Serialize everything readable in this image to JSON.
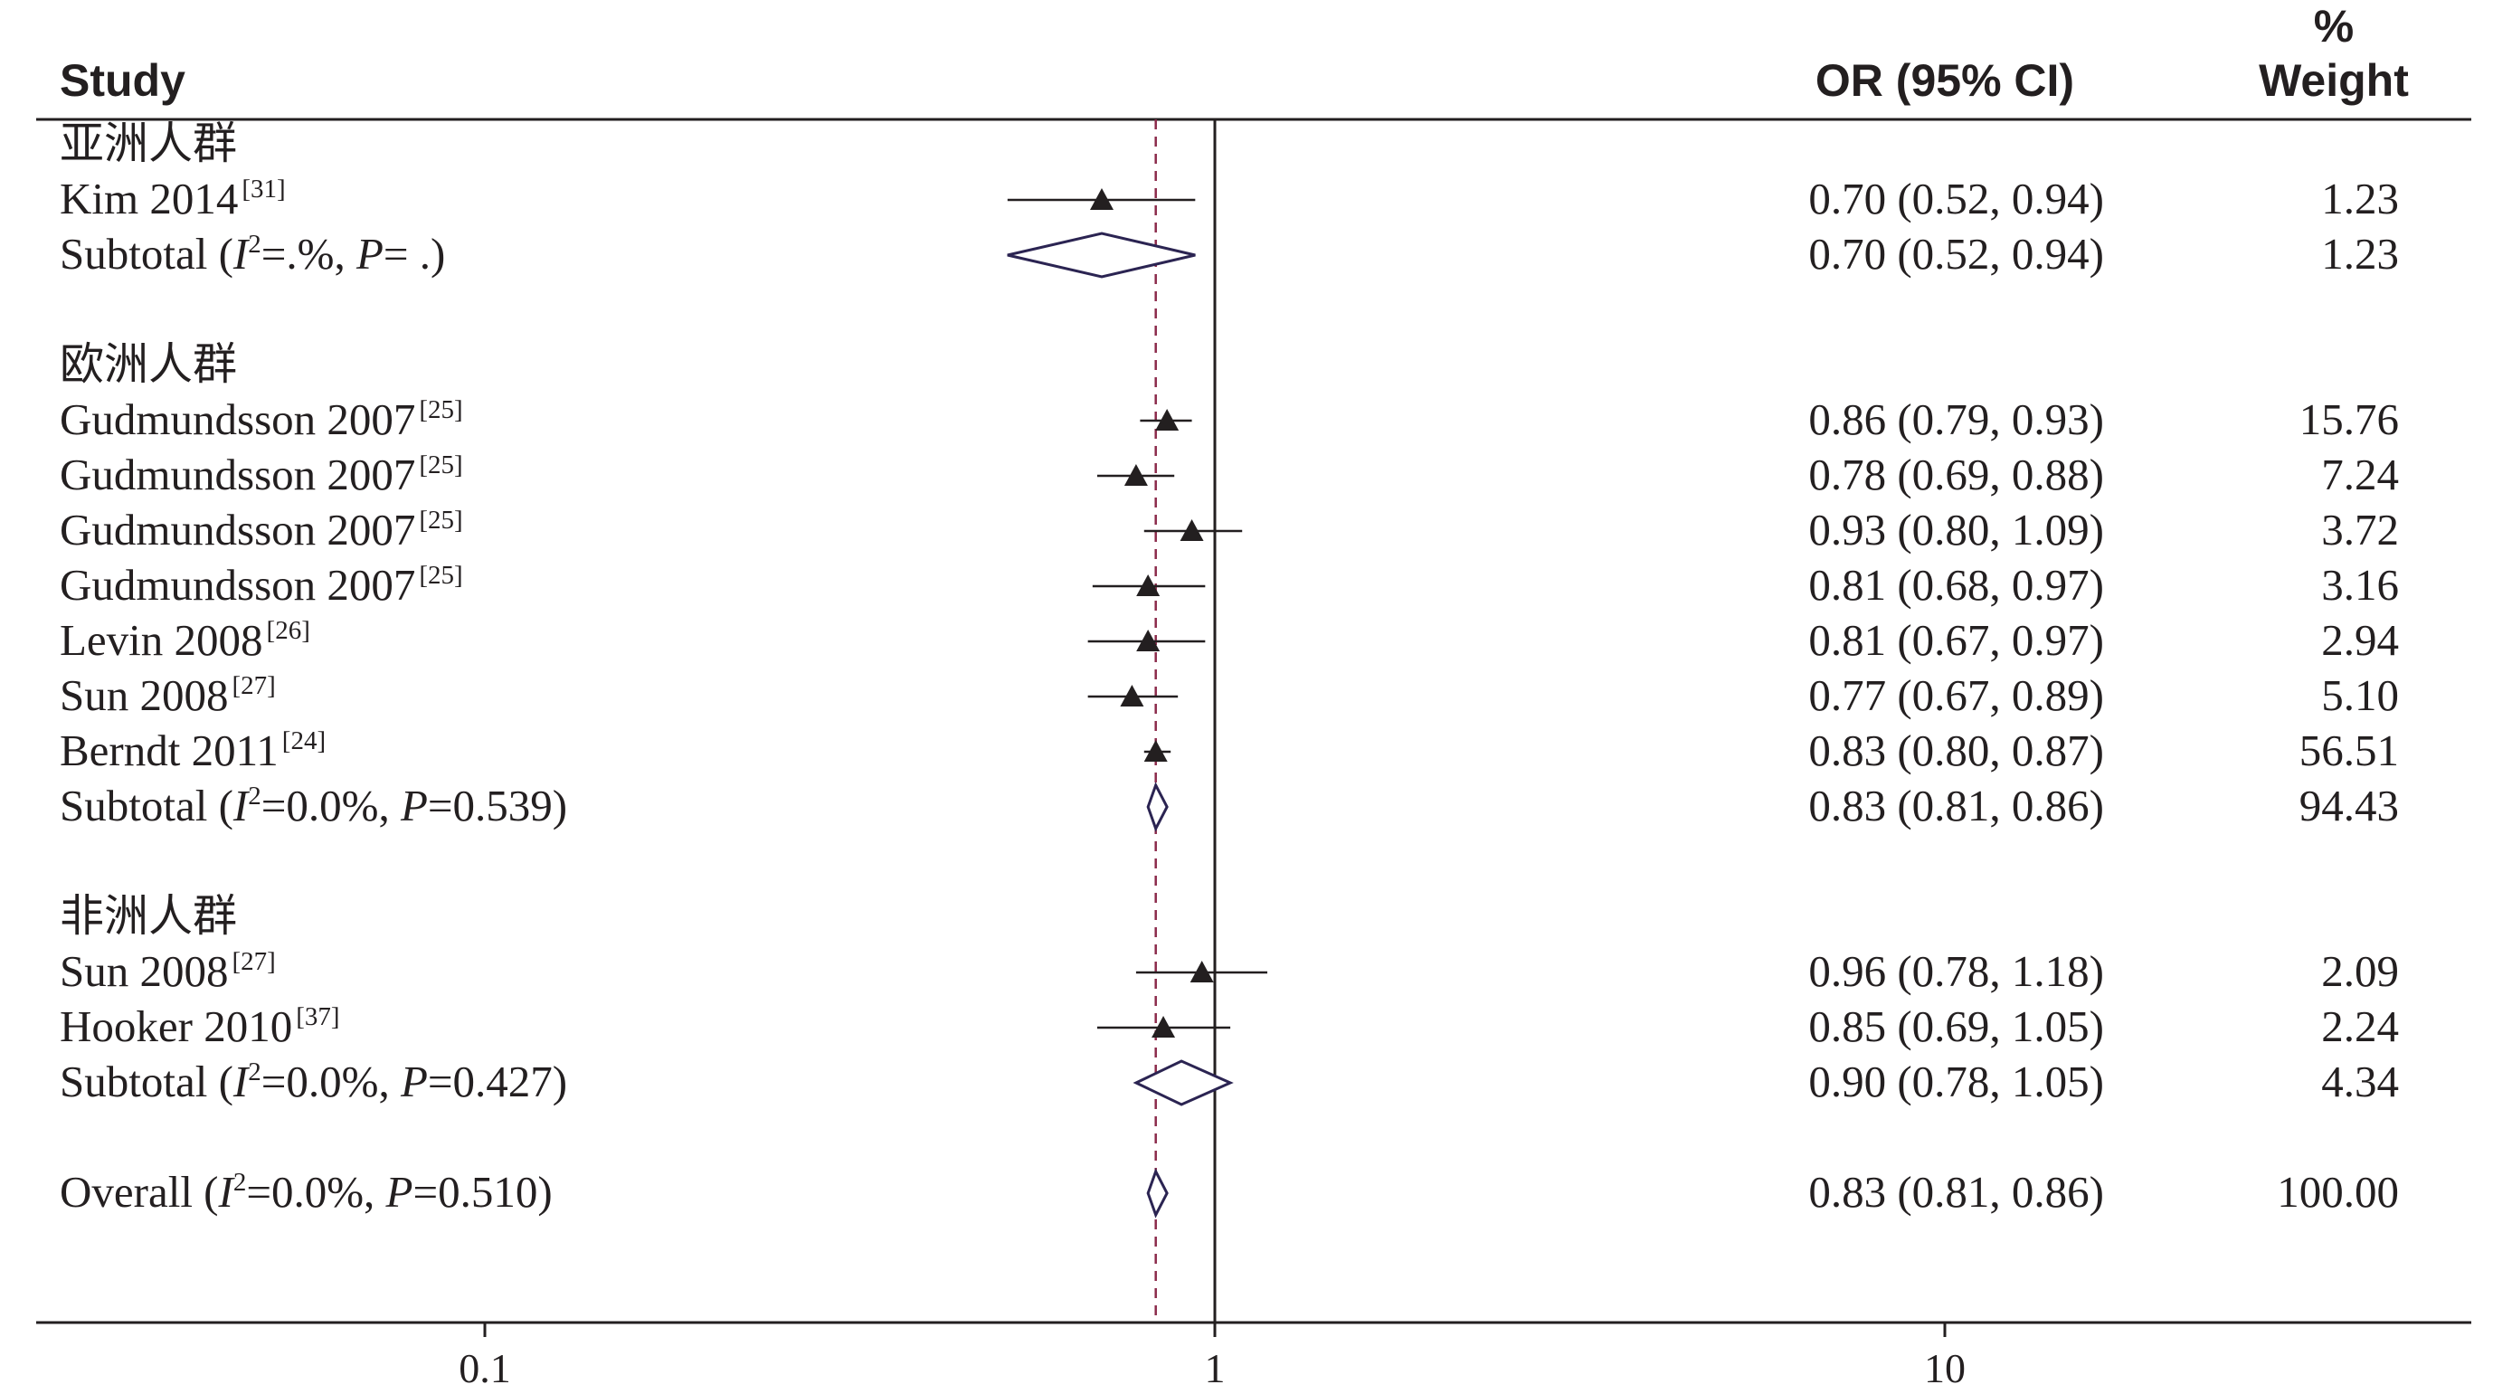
{
  "header": {
    "study": "Study",
    "or_ci": "OR (95% CI)",
    "weight_line1": "%",
    "weight_line2": "Weight"
  },
  "chart_data": {
    "type": "forest",
    "x_scale": "log",
    "xlim": [
      0.03,
      30
    ],
    "xticks": [
      0.1,
      1,
      10
    ],
    "xtick_labels": [
      "0.1",
      "1",
      "10"
    ],
    "null_line": 1,
    "overall_line": 0.83,
    "colors": {
      "marker": "#231f20",
      "diamond": "#2b2452",
      "overall_line": "#8b2a4a",
      "axis": "#231f20"
    },
    "rows": [
      {
        "kind": "group",
        "label": "亚洲人群"
      },
      {
        "kind": "study",
        "label": "Kim 2014",
        "ref": "[31]",
        "or": 0.7,
        "lo": 0.52,
        "hi": 0.94,
        "ci_text": "0.70 (0.52, 0.94)",
        "weight": "1.23"
      },
      {
        "kind": "subtotal",
        "label": "Subtotal",
        "i2": "=.%",
        "p": "= .",
        "or": 0.7,
        "lo": 0.52,
        "hi": 0.94,
        "ci_text": "0.70 (0.52, 0.94)",
        "weight": "1.23"
      },
      {
        "kind": "blank"
      },
      {
        "kind": "group",
        "label": "欧洲人群"
      },
      {
        "kind": "study",
        "label": "Gudmundsson 2007",
        "ref": "[25]",
        "or": 0.86,
        "lo": 0.79,
        "hi": 0.93,
        "ci_text": "0.86 (0.79, 0.93)",
        "weight": "15.76"
      },
      {
        "kind": "study",
        "label": "Gudmundsson 2007",
        "ref": "[25]",
        "or": 0.78,
        "lo": 0.69,
        "hi": 0.88,
        "ci_text": "0.78 (0.69, 0.88)",
        "weight": "7.24"
      },
      {
        "kind": "study",
        "label": "Gudmundsson 2007",
        "ref": "[25]",
        "or": 0.93,
        "lo": 0.8,
        "hi": 1.09,
        "ci_text": "0.93 (0.80, 1.09)",
        "weight": "3.72"
      },
      {
        "kind": "study",
        "label": "Gudmundsson 2007",
        "ref": "[25]",
        "or": 0.81,
        "lo": 0.68,
        "hi": 0.97,
        "ci_text": "0.81 (0.68, 0.97)",
        "weight": "3.16"
      },
      {
        "kind": "study",
        "label": "Levin 2008",
        "ref": "[26]",
        "or": 0.81,
        "lo": 0.67,
        "hi": 0.97,
        "ci_text": "0.81 (0.67, 0.97)",
        "weight": "2.94"
      },
      {
        "kind": "study",
        "label": "Sun 2008",
        "ref": "[27]",
        "or": 0.77,
        "lo": 0.67,
        "hi": 0.89,
        "ci_text": "0.77 (0.67, 0.89)",
        "weight": "5.10"
      },
      {
        "kind": "study",
        "label": "Berndt 2011",
        "ref": "[24]",
        "or": 0.83,
        "lo": 0.8,
        "hi": 0.87,
        "ci_text": "0.83 (0.80, 0.87)",
        "weight": "56.51"
      },
      {
        "kind": "subtotal",
        "label": "Subtotal",
        "i2": "=0.0%",
        "p": "=0.539",
        "or": 0.83,
        "lo": 0.81,
        "hi": 0.86,
        "ci_text": "0.83 (0.81, 0.86)",
        "weight": "94.43"
      },
      {
        "kind": "blank"
      },
      {
        "kind": "group",
        "label": "非洲人群"
      },
      {
        "kind": "study",
        "label": "Sun 2008",
        "ref": "[27]",
        "or": 0.96,
        "lo": 0.78,
        "hi": 1.18,
        "ci_text": "0.96 (0.78, 1.18)",
        "weight": "2.09"
      },
      {
        "kind": "study",
        "label": "Hooker 2010",
        "ref": "[37]",
        "or": 0.85,
        "lo": 0.69,
        "hi": 1.05,
        "ci_text": "0.85 (0.69, 1.05)",
        "weight": "2.24"
      },
      {
        "kind": "subtotal",
        "label": "Subtotal",
        "i2": "=0.0%",
        "p": "=0.427",
        "or": 0.9,
        "lo": 0.78,
        "hi": 1.05,
        "ci_text": "0.90 (0.78, 1.05)",
        "weight": "4.34"
      },
      {
        "kind": "blank"
      },
      {
        "kind": "overall",
        "label": "Overall",
        "i2": "=0.0%",
        "p": "=0.510",
        "or": 0.83,
        "lo": 0.81,
        "hi": 0.86,
        "ci_text": "0.83 (0.81, 0.86)",
        "weight": "100.00"
      }
    ]
  }
}
